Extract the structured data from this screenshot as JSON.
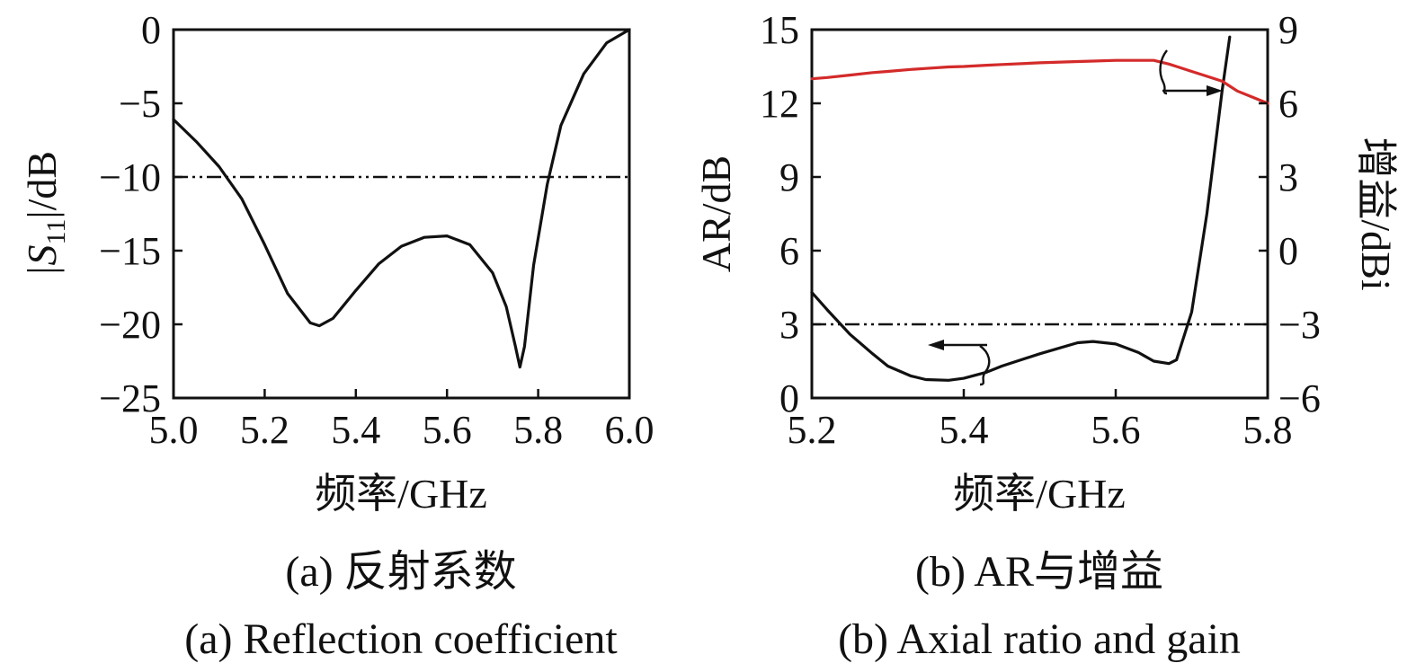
{
  "chart_data": [
    {
      "type": "line",
      "panel": "a",
      "x": [
        5.0,
        5.05,
        5.1,
        5.15,
        5.2,
        5.25,
        5.3,
        5.32,
        5.35,
        5.4,
        5.45,
        5.5,
        5.55,
        5.6,
        5.65,
        5.7,
        5.73,
        5.75,
        5.76,
        5.77,
        5.79,
        5.82,
        5.85,
        5.9,
        5.95,
        6.0
      ],
      "series": [
        {
          "name": "",
          "color": "#111111",
          "values": [
            -6.1,
            -7.6,
            -9.3,
            -11.5,
            -14.6,
            -17.9,
            -19.9,
            -20.1,
            -19.6,
            -17.7,
            -15.9,
            -14.7,
            -14.1,
            -14.0,
            -14.6,
            -16.5,
            -18.8,
            -21.5,
            -22.9,
            -21.5,
            -16.0,
            -10.5,
            -6.5,
            -3.0,
            -0.9,
            0.0
          ]
        }
      ],
      "reference_line": {
        "y": -10,
        "style": "dash-dot"
      },
      "xlabel": "频率/GHz",
      "ylabel": "|S11|/dB",
      "ylabel_main": "|S",
      "ylabel_sub": "11",
      "ylabel_rest": "|/dB",
      "xlim": [
        5.0,
        6.0
      ],
      "ylim": [
        -25,
        0
      ],
      "xticks": [
        "5.0",
        "5.2",
        "5.4",
        "5.6",
        "5.8",
        "6.0"
      ],
      "yticks": [
        "0",
        "−5",
        "−10",
        "−15",
        "−20",
        "−25"
      ],
      "grid": false
    },
    {
      "type": "line",
      "panel": "b",
      "x": [
        5.2,
        5.22,
        5.25,
        5.28,
        5.3,
        5.33,
        5.35,
        5.38,
        5.4,
        5.43,
        5.45,
        5.5,
        5.55,
        5.57,
        5.6,
        5.63,
        5.65,
        5.67,
        5.68,
        5.7,
        5.72,
        5.74,
        5.75,
        5.76,
        5.8
      ],
      "series": [
        {
          "name": "",
          "axis": "left",
          "color": "#111111",
          "values": [
            4.3,
            3.6,
            2.6,
            1.8,
            1.3,
            0.9,
            0.75,
            0.72,
            0.8,
            1.05,
            1.3,
            1.8,
            2.25,
            2.3,
            2.2,
            1.85,
            1.5,
            1.4,
            1.55,
            3.5,
            7.5,
            12.5,
            14.7,
            null,
            null
          ]
        },
        {
          "name": "",
          "axis": "right",
          "color": "#d42a2a",
          "values": [
            7.0,
            7.05,
            7.15,
            7.25,
            7.3,
            7.38,
            7.42,
            7.48,
            7.5,
            7.55,
            7.58,
            7.65,
            7.7,
            7.72,
            7.75,
            7.75,
            7.75,
            7.6,
            7.5,
            7.3,
            7.1,
            6.9,
            6.7,
            6.5,
            6.0
          ]
        }
      ],
      "reference_line": {
        "y": 3,
        "axis": "left",
        "style": "dash-dot"
      },
      "xlabel": "频率/GHz",
      "ylabel": "AR/dB",
      "y2label": "增益/dBi",
      "xlim": [
        5.2,
        5.8
      ],
      "ylim": [
        0,
        15
      ],
      "y2lim": [
        -6,
        9
      ],
      "xticks": [
        "5.2",
        "5.4",
        "5.6",
        "5.8"
      ],
      "yticks": [
        "0",
        "3",
        "6",
        "9",
        "12",
        "15"
      ],
      "y2ticks": [
        "−6",
        "−3",
        "0",
        "3",
        "6",
        "9"
      ],
      "grid": false
    }
  ],
  "captions": {
    "a_zh": "(a) 反射系数",
    "a_en": "(a) Reflection coefficient",
    "b_zh": "(b) AR与增益",
    "b_en": "(b) Axial ratio and gain"
  }
}
